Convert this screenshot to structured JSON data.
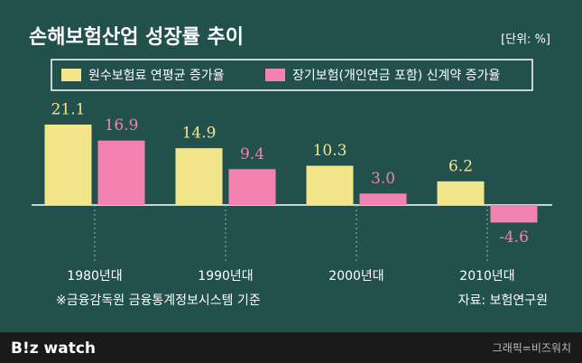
{
  "chart_data": {
    "type": "bar",
    "title": "손해보험산업 성장률 추이",
    "unit": "[단위: %]",
    "categories": [
      "1980년대",
      "1990년대",
      "2000년대",
      "2010년대"
    ],
    "series": [
      {
        "name": "원수보험료 연평균 증가율",
        "color": "#f3e68a",
        "values": [
          21.1,
          14.9,
          10.3,
          6.2
        ]
      },
      {
        "name": "장기보험(개인연금 포함) 신계약 증가율",
        "color": "#f283b0",
        "values": [
          16.9,
          9.4,
          3.0,
          -4.6
        ],
        "value_labels": [
          "16.9",
          "9.4",
          "3.0",
          "-4.6"
        ]
      }
    ],
    "ylim": [
      -10,
      25
    ],
    "note": "※금융감독원 금융통계정보시스템 기준",
    "source": "자료: 보험연구원"
  },
  "footer": {
    "logo": "B!z watch",
    "credit": "그래픽=비즈워치"
  }
}
